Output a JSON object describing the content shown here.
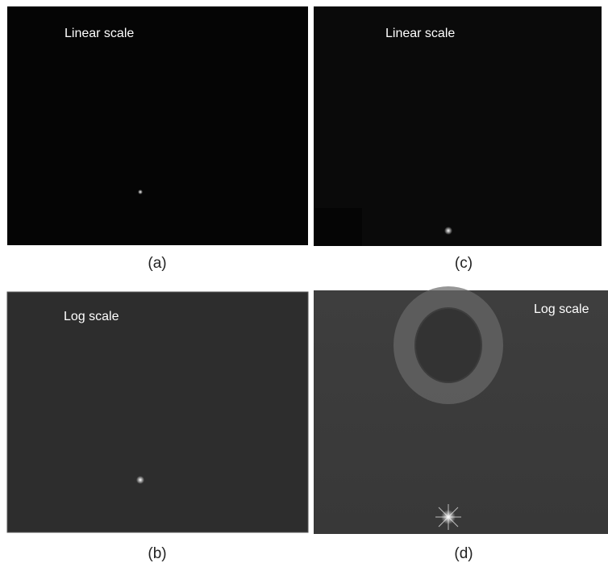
{
  "panels": [
    {
      "label": "Linear scale",
      "caption": "(a)"
    },
    {
      "label": "Log scale",
      "caption": "(b)"
    },
    {
      "label": "Linear scale",
      "caption": "(c)"
    },
    {
      "label": "Log scale",
      "caption": "(d)"
    }
  ]
}
